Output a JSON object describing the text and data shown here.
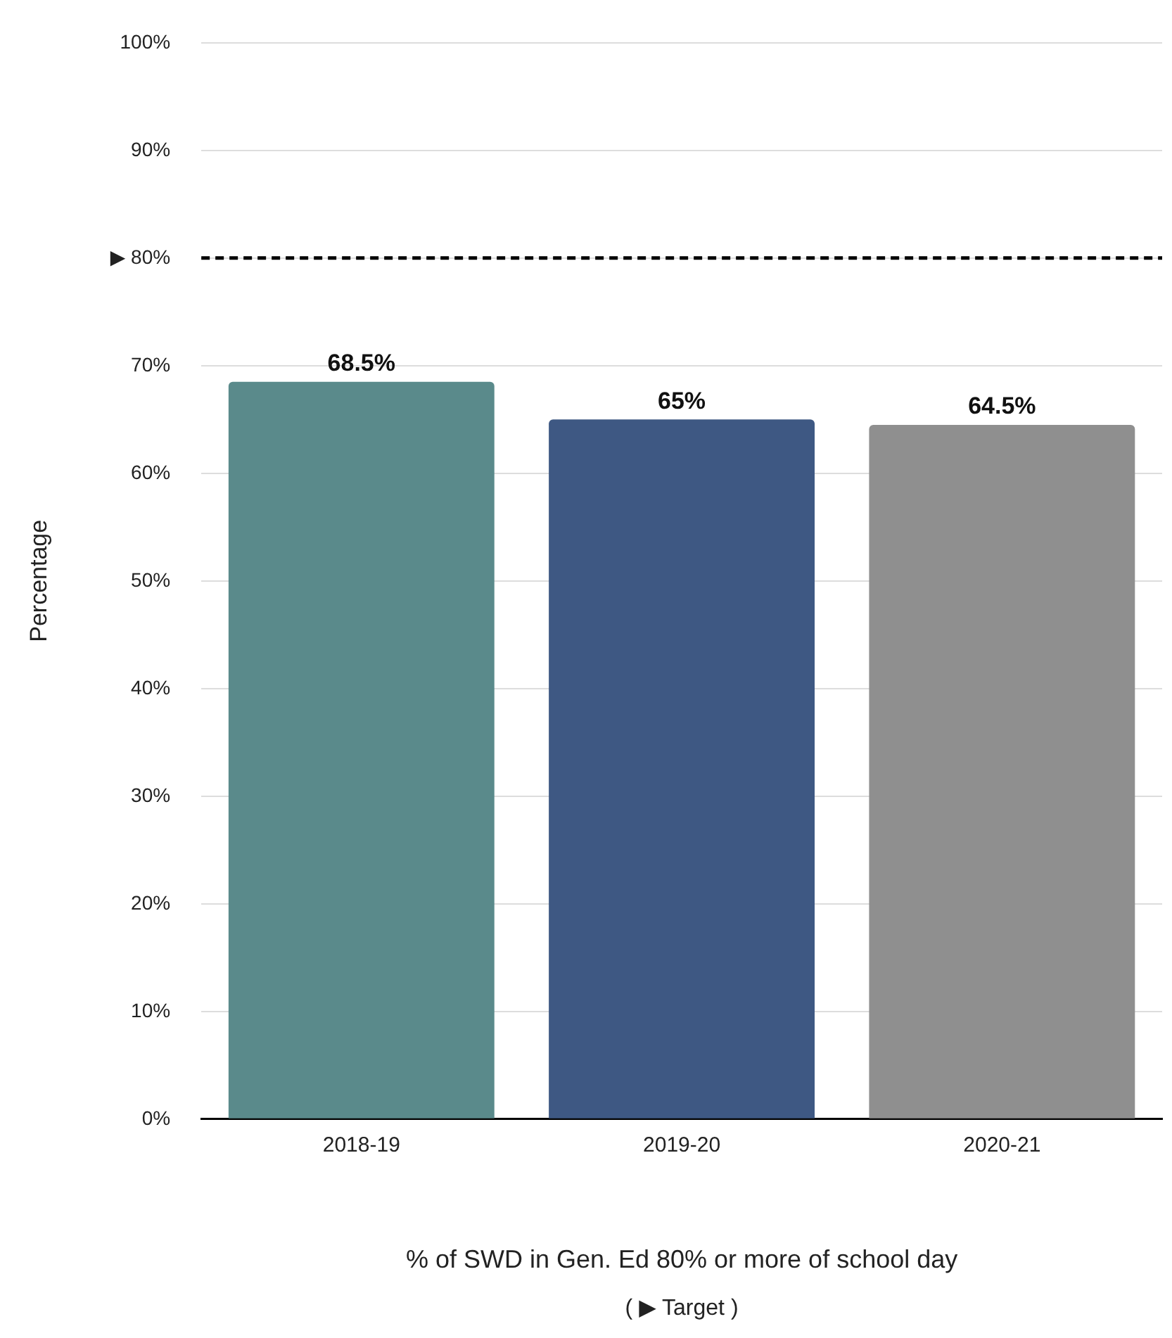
{
  "chart_data": {
    "type": "bar",
    "ylabel": "Percentage",
    "xlabel": "% of SWD in Gen. Ed 80% or more of school day",
    "categories": [
      "2018-19",
      "2019-20",
      "2020-21"
    ],
    "values": [
      68.5,
      65,
      64.5
    ],
    "colors": [
      "#5a8a8b",
      "#3e5883",
      "#8f8f8f"
    ],
    "value_labels": [
      "68.5%",
      "65%",
      "64.5%"
    ],
    "ylim": [
      0,
      100
    ],
    "yticks": [
      {
        "value": 0,
        "label": "0%"
      },
      {
        "value": 10,
        "label": "10%"
      },
      {
        "value": 20,
        "label": "20%"
      },
      {
        "value": 30,
        "label": "30%"
      },
      {
        "value": 40,
        "label": "40%"
      },
      {
        "value": 50,
        "label": "50%"
      },
      {
        "value": 60,
        "label": "60%"
      },
      {
        "value": 70,
        "label": "70%"
      },
      {
        "value": 80,
        "label": "▶ 80%"
      },
      {
        "value": 90,
        "label": "90%"
      },
      {
        "value": 100,
        "label": "100%"
      }
    ],
    "grid": "y",
    "ref_lines": [
      {
        "axis": "y",
        "value": 80,
        "color": "#000000",
        "line_style": "dashed"
      }
    ],
    "annotations": [
      "( ▶ Target )"
    ]
  }
}
